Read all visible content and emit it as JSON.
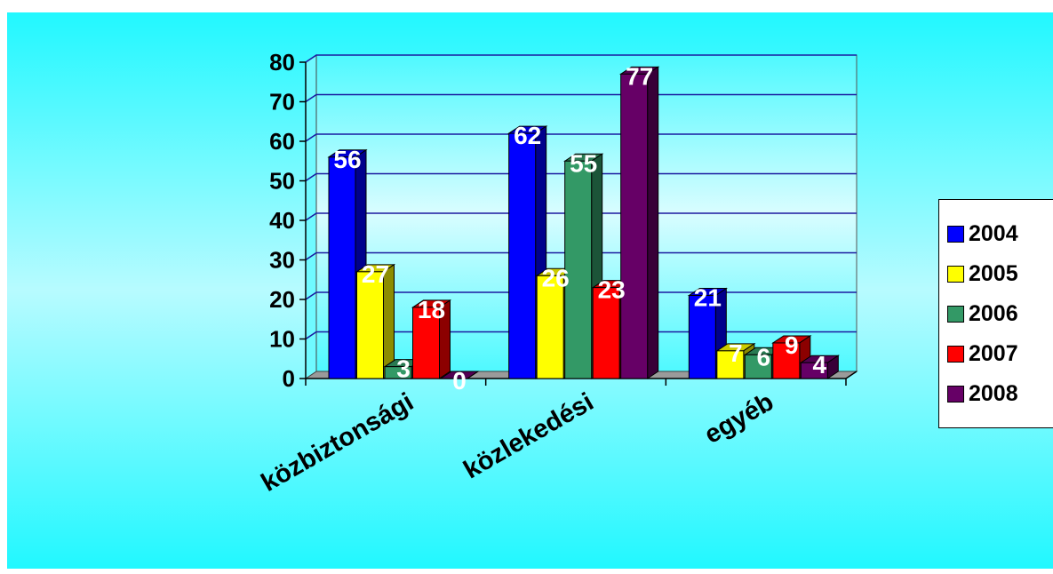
{
  "chart_data": {
    "type": "bar",
    "title": "",
    "xlabel": "",
    "ylabel": "",
    "categories": [
      "közbiztonsági",
      "közlekedési",
      "egyéb"
    ],
    "series": [
      {
        "name": "2004",
        "values": [
          56,
          62,
          21
        ],
        "color": "#0000ff"
      },
      {
        "name": "2005",
        "values": [
          27,
          26,
          7
        ],
        "color": "#ffff00"
      },
      {
        "name": "2006",
        "values": [
          3,
          55,
          6
        ],
        "color": "#339966"
      },
      {
        "name": "2007",
        "values": [
          18,
          23,
          9
        ],
        "color": "#ff0000"
      },
      {
        "name": "2008",
        "values": [
          0,
          77,
          4
        ],
        "color": "#660066"
      }
    ],
    "ylim": [
      0,
      80
    ],
    "yticks": [
      "0",
      "10",
      "20",
      "30",
      "40",
      "50",
      "60",
      "70",
      "80"
    ],
    "grid": true,
    "legend_position": "right",
    "plot_background": "gradient cyan",
    "data_labels": true
  }
}
